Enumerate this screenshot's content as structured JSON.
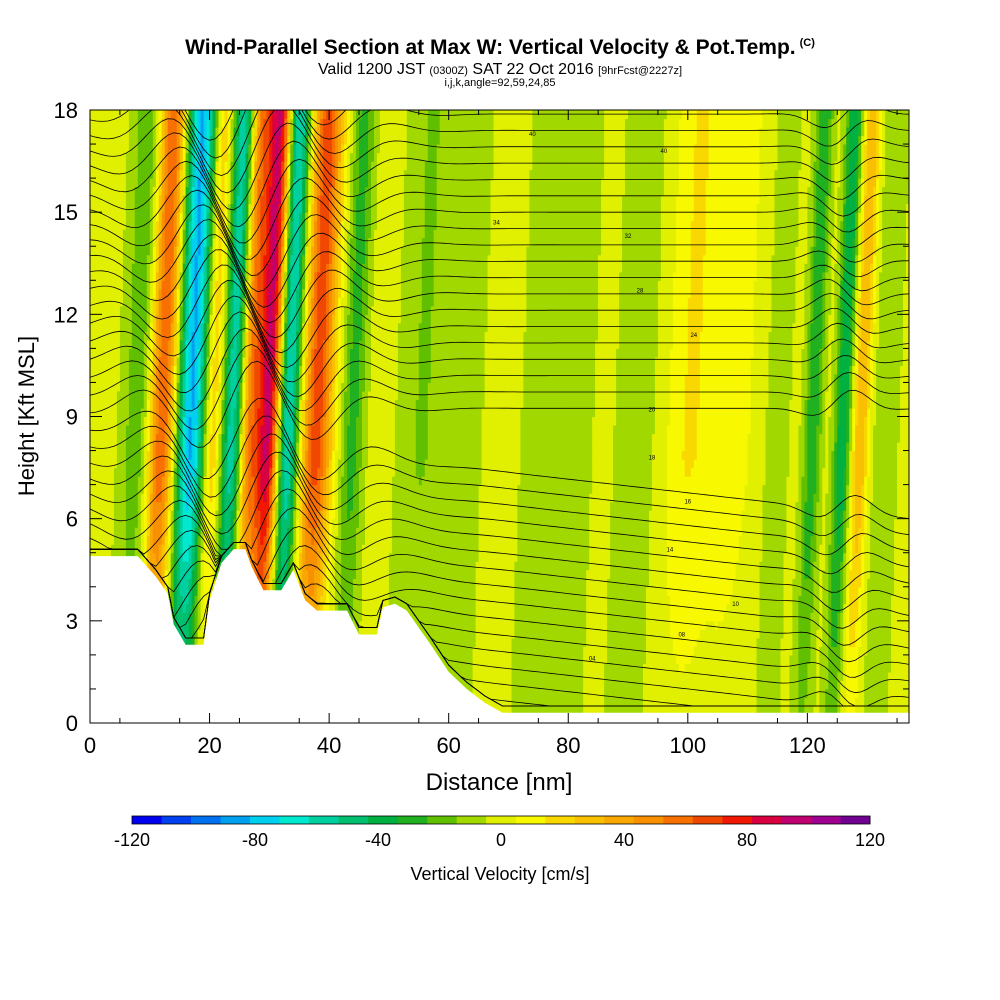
{
  "header": {
    "title": "Wind-Parallel Section at Max W: Vertical Velocity & Pot.Temp.",
    "copyright": "(C)",
    "valid_a": "Valid 1200 JST",
    "valid_zulu": "(0300Z)",
    "valid_b": "SAT 22 Oct 2016",
    "forecast": "[9hrFcst@2227z]",
    "indices": "i,j,k,angle=92,59,24,85"
  },
  "chart_data": {
    "type": "heatmap",
    "title": "Wind-Parallel Section at Max W: Vertical Velocity & Pot.Temp.",
    "xlabel": "Distance [nm]",
    "ylabel": "Height [Kft MSL]",
    "xlim": [
      0,
      137
    ],
    "ylim": [
      0,
      18
    ],
    "x_ticks": [
      0,
      20,
      40,
      60,
      80,
      100,
      120
    ],
    "y_ticks": [
      0,
      3,
      6,
      9,
      12,
      15,
      18
    ],
    "colorbar": {
      "label": "Vertical Velocity [cm/s]",
      "min": -120,
      "max": 120,
      "step": 10,
      "ticks": [
        -120,
        -80,
        -40,
        0,
        40,
        80,
        120
      ],
      "colors": [
        "#0000f0",
        "#0040f0",
        "#0070f0",
        "#00a0f0",
        "#00d0f0",
        "#00e8d0",
        "#00d0a0",
        "#00c070",
        "#00b040",
        "#20b020",
        "#60c000",
        "#a0d800",
        "#e0f000",
        "#f8f800",
        "#f8d800",
        "#f8c000",
        "#f8a800",
        "#f89000",
        "#f87000",
        "#f04800",
        "#f01800",
        "#d80040",
        "#c00070",
        "#a00090",
        "#700090"
      ]
    },
    "w_columns": [
      {
        "x": 12,
        "width": 2.5,
        "w": 80
      },
      {
        "x": 17,
        "width": 2.8,
        "w": -90
      },
      {
        "x": 20.5,
        "width": 2.0,
        "w": 40
      },
      {
        "x": 24,
        "width": 2.2,
        "w": -70
      },
      {
        "x": 26.5,
        "width": 1.8,
        "w": 60
      },
      {
        "x": 30,
        "width": 2.2,
        "w": 100
      },
      {
        "x": 33,
        "width": 2.0,
        "w": -80
      },
      {
        "x": 38,
        "width": 2.5,
        "w": 70
      },
      {
        "x": 44,
        "width": 2.0,
        "w": -30
      },
      {
        "x": 9,
        "width": 3.5,
        "w": -30
      },
      {
        "x": 55,
        "width": 4,
        "w": -15
      },
      {
        "x": 62,
        "width": 5,
        "w": -10
      },
      {
        "x": 78,
        "width": 6,
        "w": -15
      },
      {
        "x": 92,
        "width": 5,
        "w": -10
      },
      {
        "x": 100,
        "width": 4,
        "w": 15
      },
      {
        "x": 107,
        "width": 4,
        "w": 10
      },
      {
        "x": 115,
        "width": 3,
        "w": -10
      },
      {
        "x": 121,
        "width": 1.5,
        "w": -35
      },
      {
        "x": 126,
        "width": 1.5,
        "w": -45
      },
      {
        "x": 129,
        "width": 1.5,
        "w": 35
      },
      {
        "x": 133,
        "width": 2.5,
        "w": -15
      }
    ],
    "terrain": [
      [
        0,
        4.9
      ],
      [
        8,
        4.9
      ],
      [
        11,
        4.3
      ],
      [
        13,
        3.8
      ],
      [
        14,
        2.9
      ],
      [
        16,
        2.3
      ],
      [
        19,
        2.3
      ],
      [
        20,
        3.6
      ],
      [
        22,
        4.7
      ],
      [
        24,
        5.1
      ],
      [
        26,
        5.1
      ],
      [
        27,
        4.6
      ],
      [
        29,
        3.9
      ],
      [
        32,
        3.9
      ],
      [
        34,
        4.5
      ],
      [
        36,
        3.6
      ],
      [
        38,
        3.3
      ],
      [
        43,
        3.3
      ],
      [
        45,
        2.6
      ],
      [
        48,
        2.6
      ],
      [
        49,
        3.4
      ],
      [
        51,
        3.5
      ],
      [
        53,
        3.3
      ],
      [
        55,
        2.8
      ],
      [
        57,
        2.3
      ],
      [
        60,
        1.5
      ],
      [
        63,
        1.0
      ],
      [
        66,
        0.6
      ],
      [
        69,
        0.3
      ],
      [
        73,
        0.3
      ],
      [
        137,
        0.3
      ]
    ],
    "theta_labels": [
      {
        "x": 74,
        "y": 17.3,
        "text": "40"
      },
      {
        "x": 96,
        "y": 16.8,
        "text": "40"
      },
      {
        "x": 68,
        "y": 14.7,
        "text": "34"
      },
      {
        "x": 90,
        "y": 14.3,
        "text": "32"
      },
      {
        "x": 92,
        "y": 12.7,
        "text": "28"
      },
      {
        "x": 101,
        "y": 11.4,
        "text": "24"
      },
      {
        "x": 94,
        "y": 9.2,
        "text": "20"
      },
      {
        "x": 94,
        "y": 7.8,
        "text": "18"
      },
      {
        "x": 100,
        "y": 6.5,
        "text": "16"
      },
      {
        "x": 97,
        "y": 5.1,
        "text": "14"
      },
      {
        "x": 108,
        "y": 3.5,
        "text": "10"
      },
      {
        "x": 99,
        "y": 2.6,
        "text": "08"
      },
      {
        "x": 84,
        "y": 1.9,
        "text": "04"
      }
    ]
  }
}
